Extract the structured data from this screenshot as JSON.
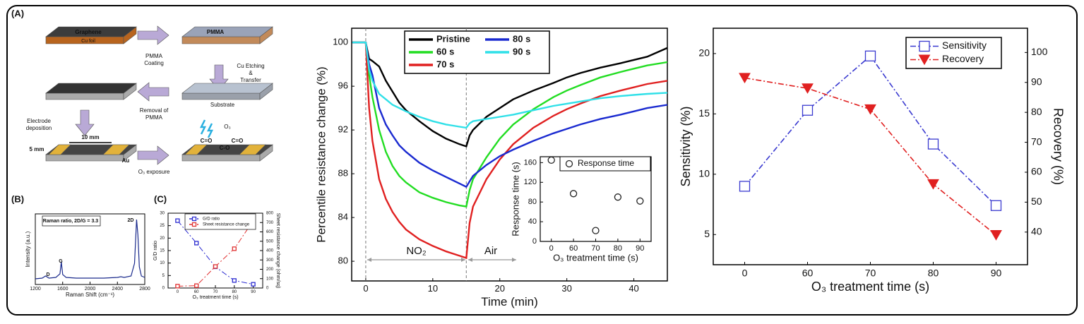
{
  "schematic": {
    "panel": "(A)",
    "graphene": "Graphene",
    "cu_foil": "Cu foil",
    "pmma": "PMMA",
    "step_coating": [
      "PMMA",
      "Coating"
    ],
    "step_etching": [
      "Cu Etching",
      "&",
      "Transfer"
    ],
    "substrate": "Substrate",
    "step_removal": [
      "Removal of",
      "PMMA"
    ],
    "step_electrode": [
      "Electrode",
      "deposition"
    ],
    "dim_width": "5 mm",
    "dim_length": "10 mm",
    "electrode": "Au",
    "step_ozone": "O₃ exposure",
    "ozone": "O₃",
    "groups": [
      "C=O",
      "C-O",
      "C=O"
    ]
  },
  "panels": [
    "(B)",
    "(C)"
  ],
  "chart_data": [
    {
      "type": "line",
      "xlabel": "Raman Shift (cm⁻¹)",
      "ylabel": "Intensity (a.u.)",
      "xlim": [
        1200,
        2800
      ],
      "xticks": [
        1200,
        1600,
        2000,
        2400,
        2800
      ],
      "ylim": [
        0,
        100
      ],
      "x": [
        1200,
        1300,
        1350,
        1400,
        1500,
        1560,
        1580,
        1600,
        1650,
        1800,
        2000,
        2200,
        2400,
        2450,
        2500,
        2600,
        2650,
        2680,
        2700,
        2720,
        2750,
        2800
      ],
      "series": [
        {
          "name": "Raman spectrum",
          "color": "#1a2a8c",
          "values": [
            8,
            9,
            12,
            9,
            10,
            15,
            32,
            14,
            10,
            9,
            9,
            9,
            10,
            11,
            10,
            12,
            30,
            92,
            70,
            25,
            12,
            10
          ]
        }
      ],
      "annotations": [
        "Raman ratio, 2D/G = 3.3",
        "D",
        "G",
        "2D"
      ]
    },
    {
      "type": "line",
      "xlabel": "O₃ treatment time (s)",
      "ylabel": "G/D ratio",
      "y2label": "Sheet resistance change (ohm/sq)",
      "categories": [
        "0",
        "60",
        "70",
        "80",
        "90"
      ],
      "ylim": [
        0,
        30
      ],
      "yticks": [
        0,
        5,
        10,
        15,
        20,
        25,
        30
      ],
      "y2lim": [
        0,
        800
      ],
      "y2ticks": [
        0,
        100,
        200,
        300,
        400,
        500,
        600,
        700,
        800
      ],
      "series": [
        {
          "name": "G/D ratio",
          "color": "#2b2bd0",
          "marker": "square-open",
          "linestyle": "dashdot",
          "values": [
            27,
            18,
            8.5,
            3,
            1.5
          ]
        },
        {
          "name": "Sheet resistance change",
          "color": "#e03030",
          "marker": "square-open",
          "linestyle": "dashdot",
          "axis": "y2",
          "values": [
            20,
            25,
            230,
            420,
            720
          ]
        }
      ]
    },
    {
      "type": "line",
      "xlabel": "Time (min)",
      "ylabel": "Percentile resistance change (%)",
      "xlim": [
        -2.1,
        45
      ],
      "xticks": [
        0,
        10,
        20,
        30,
        40
      ],
      "ylim": [
        78.2,
        101.3
      ],
      "yticks": [
        80,
        84,
        88,
        92,
        96,
        100
      ],
      "vlines": [
        0,
        15
      ],
      "annotations": [
        "NO₂",
        "Air"
      ],
      "x": [
        -2,
        -1,
        0,
        0.5,
        1,
        2,
        3,
        4,
        5,
        6,
        8,
        10,
        12,
        14,
        15,
        15.5,
        16,
        18,
        20,
        22,
        25,
        28,
        30,
        32,
        35,
        38,
        40,
        42,
        45
      ],
      "series": [
        {
          "name": "Pristine",
          "color": "#000000",
          "values": [
            100,
            100,
            100,
            98.5,
            98.3,
            97.8,
            96.5,
            95.5,
            94.5,
            93.8,
            92.8,
            91.9,
            91.2,
            90.7,
            90.5,
            91.5,
            92.0,
            93.2,
            94.0,
            94.8,
            95.6,
            96.3,
            96.8,
            97.2,
            97.7,
            98.1,
            98.4,
            98.7,
            99.5
          ]
        },
        {
          "name": "60 s",
          "color": "#22dd22",
          "values": [
            100,
            100,
            100,
            97,
            95,
            92,
            90,
            88.7,
            87.8,
            87.2,
            86.3,
            85.8,
            85.4,
            85.1,
            85.0,
            86.5,
            87.5,
            89.5,
            91.2,
            92.5,
            93.9,
            95.0,
            95.6,
            96.1,
            96.8,
            97.3,
            97.6,
            97.9,
            98.2
          ]
        },
        {
          "name": "70 s",
          "color": "#e02020",
          "values": [
            100,
            100,
            100,
            94,
            91,
            87.5,
            85.7,
            84.5,
            83.6,
            82.9,
            82.0,
            81.4,
            80.9,
            80.5,
            80.3,
            83.5,
            85.0,
            87.5,
            89.3,
            90.7,
            92.2,
            93.3,
            93.9,
            94.4,
            95.1,
            95.6,
            95.9,
            96.2,
            96.5
          ]
        },
        {
          "name": "80 s",
          "color": "#1a2ad0",
          "values": [
            100,
            100,
            100,
            98,
            97,
            94,
            92.5,
            91.5,
            90.6,
            90.0,
            89.0,
            88.3,
            87.7,
            87.1,
            86.8,
            87.3,
            87.8,
            88.8,
            89.6,
            90.2,
            91.0,
            91.7,
            92.1,
            92.5,
            93.0,
            93.4,
            93.7,
            94.0,
            94.3
          ]
        },
        {
          "name": "90 s",
          "color": "#30e0e8",
          "values": [
            100,
            100,
            100,
            97.5,
            96.5,
            95.3,
            94.8,
            94.3,
            94.0,
            93.7,
            93.2,
            92.8,
            92.5,
            92.3,
            92.2,
            92.6,
            92.8,
            93.0,
            93.2,
            93.4,
            93.8,
            94.2,
            94.4,
            94.6,
            94.9,
            95.1,
            95.2,
            95.3,
            95.4
          ]
        }
      ]
    },
    {
      "type": "scatter",
      "xlabel": "O₃ treatment time (s)",
      "ylabel": "Response time (s)",
      "categories": [
        "0",
        "60",
        "70",
        "80",
        "90"
      ],
      "ylim": [
        0,
        172
      ],
      "yticks": [
        0,
        40,
        80,
        120,
        160
      ],
      "series": [
        {
          "name": "Response time",
          "color": "#222222",
          "marker": "circle-open",
          "values": [
            165,
            97,
            22,
            90,
            82
          ]
        }
      ]
    },
    {
      "type": "line",
      "xlabel": "O₃ treatment time (s)",
      "ylabel": "Sensitivity (%)",
      "y2label": "Recovery (%)",
      "categories": [
        "0",
        "60",
        "70",
        "80",
        "90"
      ],
      "ylim": [
        2.5,
        22.1
      ],
      "yticks": [
        5,
        10,
        15,
        20
      ],
      "y2lim": [
        29.1,
        108.1
      ],
      "y2ticks": [
        40,
        50,
        60,
        70,
        80,
        90,
        100
      ],
      "series": [
        {
          "name": "Sensitivity",
          "color": "#3a3ad0",
          "marker": "square-open",
          "linestyle": "dashdot",
          "values": [
            9,
            15.3,
            19.8,
            12.5,
            7.4
          ]
        },
        {
          "name": "Recovery",
          "color": "#e02020",
          "marker": "triangle-down",
          "linestyle": "dashdot",
          "axis": "y2",
          "values": [
            91.5,
            88,
            81,
            56,
            39
          ]
        }
      ]
    }
  ]
}
